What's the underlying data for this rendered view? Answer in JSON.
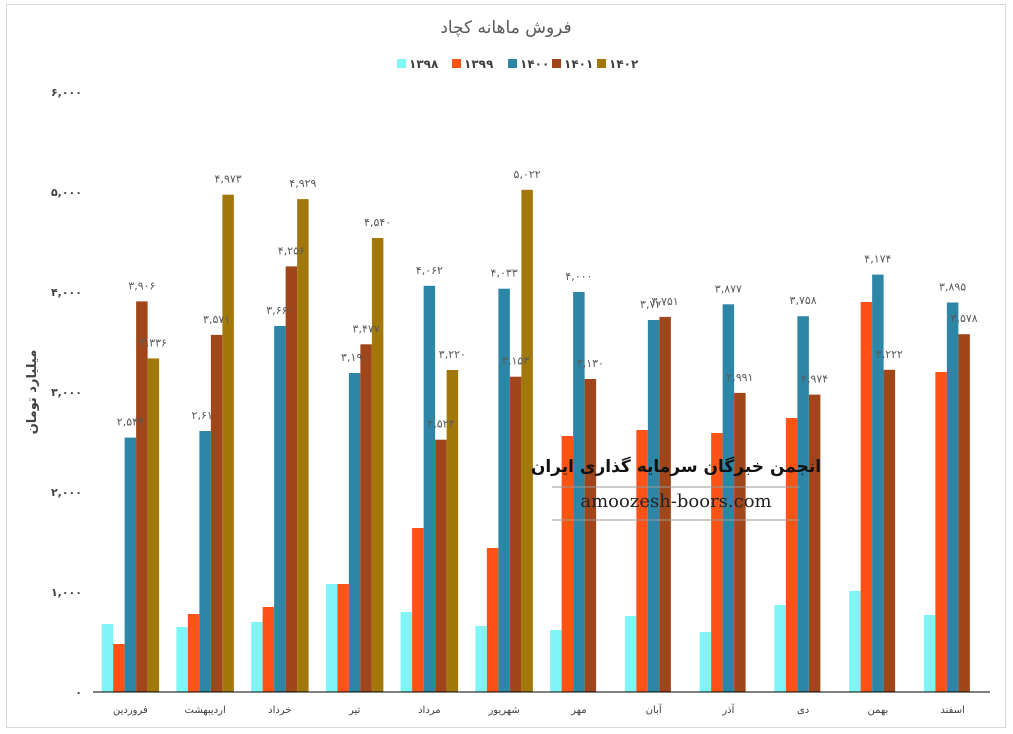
{
  "chart_data": {
    "type": "bar",
    "title": "فروش ماهانه کچاد",
    "ylabel": "میلیارد تومان",
    "xlabel": "",
    "ylim": [
      0,
      6000
    ],
    "yticks": [
      "۰",
      "۱,۰۰۰",
      "۲,۰۰۰",
      "۳,۰۰۰",
      "۴,۰۰۰",
      "۵,۰۰۰",
      "۶,۰۰۰"
    ],
    "ytick_values": [
      0,
      1000,
      2000,
      3000,
      4000,
      5000,
      6000
    ],
    "grid": false,
    "legend_position": "top",
    "categories": [
      "فروردین",
      "اردیبهشت",
      "خرداد",
      "تیر",
      "مرداد",
      "شهریور",
      "مهر",
      "آبان",
      "آذر",
      "دی",
      "بهمن",
      "اسفند"
    ],
    "series": [
      {
        "name": "۱۳۹۸",
        "color": "#7ff5f5",
        "values": [
          680,
          650,
          700,
          1080,
          800,
          660,
          620,
          760,
          600,
          870,
          1010,
          770
        ],
        "labels": [
          null,
          null,
          null,
          null,
          null,
          null,
          null,
          null,
          null,
          null,
          null,
          null
        ]
      },
      {
        "name": "۱۳۹۹",
        "color": "#ff5216",
        "values": [
          480,
          780,
          850,
          1080,
          1640,
          1440,
          2560,
          2620,
          2590,
          2740,
          3900,
          3200
        ],
        "labels": [
          null,
          null,
          null,
          null,
          null,
          null,
          null,
          null,
          null,
          null,
          null,
          null
        ]
      },
      {
        "name": "۱۴۰۰",
        "color": "#2e86a6",
        "values": [
          2544,
          2610,
          3660,
          3190,
          4062,
          4033,
          4000,
          3720,
          3877,
          3758,
          4174,
          3895
        ],
        "labels": [
          "۲,۵۴۴",
          "۲,۶۱۰",
          "۳,۶۶۰",
          "۳,۱۹۰",
          "۴,۰۶۲",
          "۴,۰۳۳",
          "۴,۰۰۰",
          "۳,۷۲۰",
          "۳,۸۷۷",
          "۳,۷۵۸",
          "۴,۱۷۴",
          "۳,۸۹۵"
        ]
      },
      {
        "name": "۱۴۰۱",
        "color": "#a1461b",
        "values": [
          3906,
          3571,
          4256,
          3477,
          2523,
          3153,
          3130,
          3751,
          2991,
          2974,
          3222,
          3578
        ],
        "labels": [
          "۳,۹۰۶",
          "۳,۵۷۱",
          "۴,۲۵۶",
          "۳,۴۷۷",
          "۲,۵۲۳",
          "۳,۱۵۳",
          "۳,۱۳۰",
          "۳,۷۵۱",
          "۲,۹۹۱",
          "۲,۹۷۴",
          "۳,۲۲۲",
          "۳,۵۷۸"
        ]
      },
      {
        "name": "۱۴۰۲",
        "color": "#a3780a",
        "values": [
          3336,
          4973,
          4929,
          4540,
          3220,
          5022,
          null,
          null,
          null,
          null,
          null,
          null
        ],
        "labels": [
          "۳,۳۳۶",
          "۴,۹۷۳",
          "۴,۹۲۹",
          "۴,۵۴۰",
          "۳,۲۲۰",
          "۵,۰۲۲",
          null,
          null,
          null,
          null,
          null,
          null
        ]
      }
    ]
  },
  "watermark": {
    "line1": "انجمن خبرگان سرمایه گذاری ایران",
    "line2": "amoozesh-boors.com"
  }
}
